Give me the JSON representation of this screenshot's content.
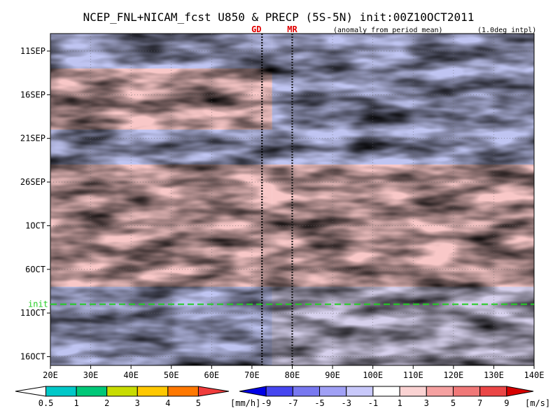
{
  "chart_data": {
    "type": "heatmap",
    "title": "NCEP_FNL+NICAM_fcst U850 & PRECP (5S-5N) init:00Z10OCT2011",
    "subtitle_left": "(anomaly from period mean)",
    "subtitle_right": "(1.0deg intpl)",
    "xlim": [
      20,
      140
    ],
    "x_ticks": [
      {
        "value": 20,
        "label": "20E"
      },
      {
        "value": 30,
        "label": "30E"
      },
      {
        "value": 40,
        "label": "40E"
      },
      {
        "value": 50,
        "label": "50E"
      },
      {
        "value": 60,
        "label": "60E"
      },
      {
        "value": 70,
        "label": "70E"
      },
      {
        "value": 80,
        "label": "80E"
      },
      {
        "value": 90,
        "label": "90E"
      },
      {
        "value": 100,
        "label": "100E"
      },
      {
        "value": 110,
        "label": "110E"
      },
      {
        "value": 120,
        "label": "120E"
      },
      {
        "value": 130,
        "label": "130E"
      },
      {
        "value": 140,
        "label": "140E"
      }
    ],
    "time_range": [
      "2011-09-09",
      "2011-10-17"
    ],
    "y_ticks": [
      {
        "date": "2011-09-11",
        "label": "11SEP"
      },
      {
        "date": "2011-09-16",
        "label": "16SEP"
      },
      {
        "date": "2011-09-21",
        "label": "21SEP"
      },
      {
        "date": "2011-09-26",
        "label": "26SEP"
      },
      {
        "date": "2011-10-01",
        "label": "1OCT"
      },
      {
        "date": "2011-10-06",
        "label": "6OCT"
      },
      {
        "date": "2011-10-11",
        "label": "11OCT"
      },
      {
        "date": "2011-10-16",
        "label": "16OCT"
      }
    ],
    "init": {
      "date": "2011-10-10",
      "label": "init"
    },
    "markers": [
      {
        "label": "GD",
        "lon": 72.5,
        "color": "#e00000"
      },
      {
        "label": "MR",
        "lon": 80,
        "color": "#e00000"
      }
    ],
    "u850_bands": [
      {
        "start": "2011-09-09",
        "end": "2011-09-13",
        "west": "neg",
        "east": "neg"
      },
      {
        "start": "2011-09-13",
        "end": "2011-09-20",
        "west": "pos",
        "east": "neg"
      },
      {
        "start": "2011-09-20",
        "end": "2011-09-24",
        "west": "neg",
        "east": "neg"
      },
      {
        "start": "2011-09-24",
        "end": "2011-10-03",
        "west": "pos",
        "east": "pos"
      },
      {
        "start": "2011-10-03",
        "end": "2011-10-08",
        "west": "pos",
        "east": "pos"
      },
      {
        "start": "2011-10-08",
        "end": "2011-10-17",
        "west": "neg",
        "east": "mixed"
      }
    ],
    "legend_precip": {
      "levels": [
        "0.5",
        "1",
        "2",
        "3",
        "4",
        "5"
      ],
      "unit": "[mm/h]",
      "colors": [
        "#ffffff",
        "#00c8c8",
        "#00c878",
        "#c8dc00",
        "#ffc800",
        "#ff7800",
        "#f03c3c"
      ]
    },
    "legend_u850": {
      "levels": [
        "-9",
        "-7",
        "-5",
        "-3",
        "-1",
        "1",
        "3",
        "5",
        "7",
        "9"
      ],
      "unit": "[m/s]",
      "colors": [
        "#0000e6",
        "#4646f0",
        "#7878f0",
        "#a0a0f5",
        "#c8c8fa",
        "#ffffff",
        "#fad2d2",
        "#f5a0a0",
        "#f07878",
        "#eb4646",
        "#d70000"
      ]
    }
  }
}
